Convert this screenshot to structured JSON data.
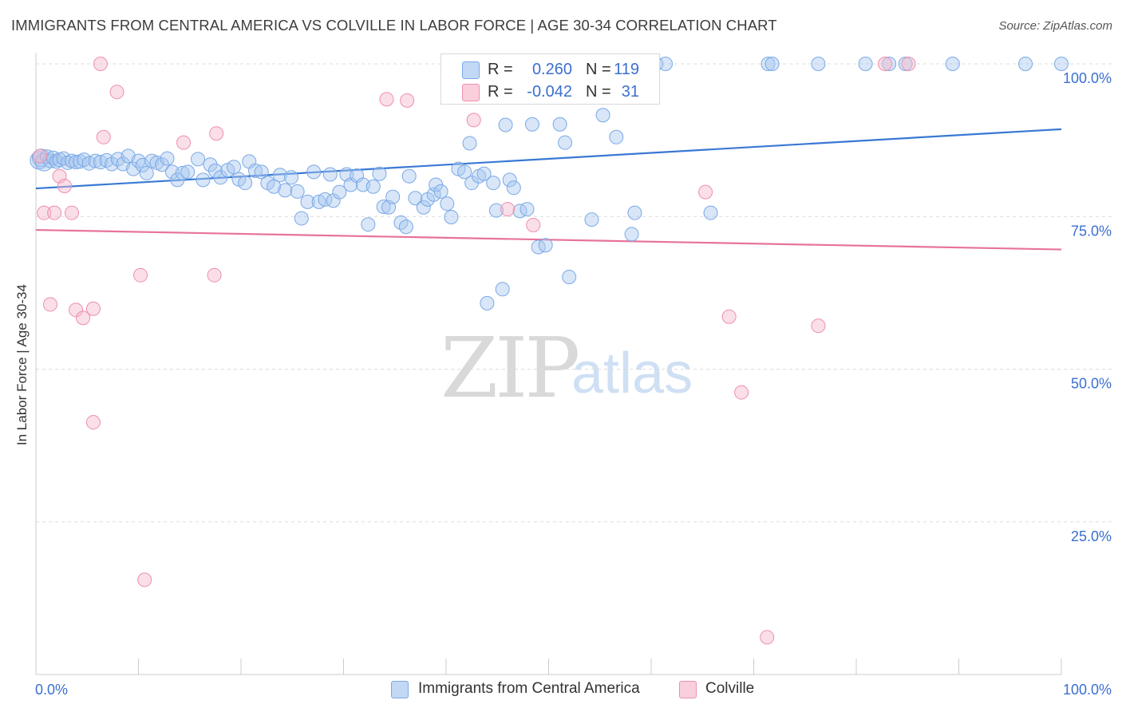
{
  "title": "IMMIGRANTS FROM CENTRAL AMERICA VS COLVILLE IN LABOR FORCE | AGE 30-34 CORRELATION CHART",
  "source": "Source: ZipAtlas.com",
  "watermark": {
    "zip": "ZIP",
    "atlas": "atlas"
  },
  "legend_top": [
    {
      "r_label": "R =",
      "r_value": "0.260",
      "n_label": "N =",
      "n_value": "119",
      "color": "#a9c8f0"
    },
    {
      "r_label": "R =",
      "r_value": "-0.042",
      "n_label": "N =",
      "n_value": "31",
      "color": "#f5b8cb"
    }
  ],
  "colors": {
    "blue_fill": "#a9c8f0",
    "blue_stroke": "#7aa9e6",
    "blue_line": "#3a78d4",
    "pink_fill": "#f5b8cb",
    "pink_stroke": "#ee8fae",
    "pink_line": "#e8739a",
    "tick_label": "#3b6fd0",
    "grid": "#dcdcdc"
  },
  "chart_data": {
    "type": "scatter",
    "title": "IMMIGRANTS FROM CENTRAL AMERICA VS COLVILLE IN LABOR FORCE | AGE 30-34 CORRELATION CHART",
    "xlabel": "",
    "ylabel": "In Labor Force | Age 30-34",
    "xlim": [
      0,
      100
    ],
    "ylim": [
      0,
      100
    ],
    "x_tick_labels": [
      "0.0%",
      "100.0%"
    ],
    "y_tick_labels": [
      "100.0%",
      "75.0%",
      "50.0%",
      "25.0%"
    ],
    "y_ticks": [
      100,
      75,
      50,
      25
    ],
    "grid": true,
    "legend_position": "bottom",
    "series": [
      {
        "name": "Immigrants from Central America",
        "color": "#a9c8f0",
        "trend": {
          "x": [
            0,
            100
          ],
          "y": [
            79.6,
            89.3
          ]
        },
        "points": [
          [
            0.3,
            84.2
          ],
          [
            0.5,
            84.6
          ],
          [
            0.8,
            83.9
          ],
          [
            1.1,
            84.8
          ],
          [
            1.4,
            84.1
          ],
          [
            1.7,
            84.6
          ],
          [
            2.0,
            84.0
          ],
          [
            2.3,
            84.3
          ],
          [
            2.7,
            84.5
          ],
          [
            3.1,
            83.8
          ],
          [
            3.5,
            84.1
          ],
          [
            3.9,
            83.9
          ],
          [
            4.3,
            84.0
          ],
          [
            4.7,
            84.3
          ],
          [
            5.2,
            83.7
          ],
          [
            5.8,
            84.1
          ],
          [
            6.3,
            83.9
          ],
          [
            6.9,
            84.2
          ],
          [
            7.4,
            83.6
          ],
          [
            8.0,
            84.4
          ],
          [
            8.5,
            83.6
          ],
          [
            9.0,
            84.9
          ],
          [
            9.5,
            82.8
          ],
          [
            10.0,
            84.1
          ],
          [
            10.4,
            83.4
          ],
          [
            10.8,
            82.1
          ],
          [
            11.3,
            84.1
          ],
          [
            11.8,
            83.8
          ],
          [
            12.3,
            83.5
          ],
          [
            12.8,
            84.5
          ],
          [
            13.3,
            82.3
          ],
          [
            13.8,
            81.0
          ],
          [
            14.3,
            82.1
          ],
          [
            14.8,
            82.3
          ],
          [
            15.8,
            84.4
          ],
          [
            16.3,
            81.0
          ],
          [
            17.0,
            83.5
          ],
          [
            17.5,
            82.5
          ],
          [
            18.0,
            81.4
          ],
          [
            18.7,
            82.6
          ],
          [
            19.3,
            83.1
          ],
          [
            19.8,
            81.1
          ],
          [
            20.4,
            80.5
          ],
          [
            20.8,
            84.0
          ],
          [
            21.4,
            82.5
          ],
          [
            22.0,
            82.3
          ],
          [
            22.6,
            80.5
          ],
          [
            23.2,
            79.9
          ],
          [
            23.8,
            81.8
          ],
          [
            24.3,
            79.3
          ],
          [
            24.9,
            81.4
          ],
          [
            25.5,
            79.1
          ],
          [
            25.9,
            74.7
          ],
          [
            26.5,
            77.4
          ],
          [
            27.1,
            82.3
          ],
          [
            27.6,
            77.4
          ],
          [
            28.2,
            77.8
          ],
          [
            28.7,
            81.9
          ],
          [
            29.0,
            77.6
          ],
          [
            29.6,
            79.0
          ],
          [
            30.3,
            81.9
          ],
          [
            30.7,
            80.2
          ],
          [
            31.3,
            81.7
          ],
          [
            31.9,
            80.2
          ],
          [
            32.4,
            73.7
          ],
          [
            32.9,
            79.9
          ],
          [
            33.5,
            82.0
          ],
          [
            33.9,
            76.6
          ],
          [
            34.4,
            76.5
          ],
          [
            34.8,
            78.2
          ],
          [
            35.6,
            74.0
          ],
          [
            36.1,
            73.3
          ],
          [
            36.4,
            81.6
          ],
          [
            37.0,
            78.0
          ],
          [
            37.8,
            76.5
          ],
          [
            38.2,
            77.8
          ],
          [
            38.8,
            78.6
          ],
          [
            39.0,
            80.2
          ],
          [
            39.5,
            79.1
          ],
          [
            40.1,
            77.1
          ],
          [
            40.5,
            74.9
          ],
          [
            41.2,
            82.8
          ],
          [
            41.8,
            82.3
          ],
          [
            42.3,
            87.0
          ],
          [
            42.5,
            80.5
          ],
          [
            43.2,
            81.6
          ],
          [
            43.7,
            82.0
          ],
          [
            44.0,
            60.8
          ],
          [
            44.6,
            80.5
          ],
          [
            44.9,
            76.0
          ],
          [
            45.5,
            63.1
          ],
          [
            45.8,
            90.0
          ],
          [
            46.2,
            81.0
          ],
          [
            46.6,
            79.7
          ],
          [
            47.2,
            75.9
          ],
          [
            47.9,
            76.2
          ],
          [
            48.4,
            90.1
          ],
          [
            49.0,
            70.0
          ],
          [
            49.7,
            70.3
          ],
          [
            51.1,
            90.1
          ],
          [
            51.6,
            87.1
          ],
          [
            52.0,
            65.1
          ],
          [
            54.2,
            74.5
          ],
          [
            55.3,
            91.6
          ],
          [
            56.6,
            88.0
          ],
          [
            58.1,
            72.1
          ],
          [
            58.4,
            75.6
          ],
          [
            60.5,
            100
          ],
          [
            61.4,
            100
          ],
          [
            65.8,
            75.6
          ],
          [
            71.4,
            100
          ],
          [
            71.8,
            100
          ],
          [
            76.3,
            100
          ],
          [
            80.9,
            100
          ],
          [
            83.2,
            100
          ],
          [
            84.8,
            100
          ],
          [
            89.4,
            100
          ],
          [
            96.5,
            100
          ],
          [
            100,
            100
          ]
        ]
      },
      {
        "name": "Colville",
        "color": "#f5b8cb",
        "trend": {
          "x": [
            0,
            100
          ],
          "y": [
            72.8,
            69.6
          ]
        },
        "points": [
          [
            0.4,
            84.9
          ],
          [
            0.8,
            75.6
          ],
          [
            1.4,
            60.6
          ],
          [
            1.8,
            75.6
          ],
          [
            2.3,
            81.6
          ],
          [
            2.8,
            80.0
          ],
          [
            3.5,
            75.6
          ],
          [
            3.9,
            59.7
          ],
          [
            4.6,
            58.4
          ],
          [
            5.6,
            41.3
          ],
          [
            5.6,
            59.9
          ],
          [
            6.3,
            100
          ],
          [
            6.6,
            88.0
          ],
          [
            7.9,
            95.4
          ],
          [
            10.2,
            65.4
          ],
          [
            10.6,
            15.5
          ],
          [
            14.4,
            87.1
          ],
          [
            17.4,
            65.4
          ],
          [
            17.6,
            88.6
          ],
          [
            34.2,
            94.2
          ],
          [
            36.2,
            94.0
          ],
          [
            42.7,
            90.8
          ],
          [
            46.0,
            76.2
          ],
          [
            48.5,
            73.6
          ],
          [
            65.3,
            79.0
          ],
          [
            67.6,
            58.6
          ],
          [
            68.8,
            46.2
          ],
          [
            71.3,
            6.1
          ],
          [
            76.3,
            57.1
          ],
          [
            82.8,
            100
          ],
          [
            85.1,
            100
          ]
        ]
      }
    ]
  },
  "legend_bottom": [
    {
      "label": "Immigrants from Central America",
      "color": "#a9c8f0"
    },
    {
      "label": "Colville",
      "color": "#f5b8cb"
    }
  ]
}
